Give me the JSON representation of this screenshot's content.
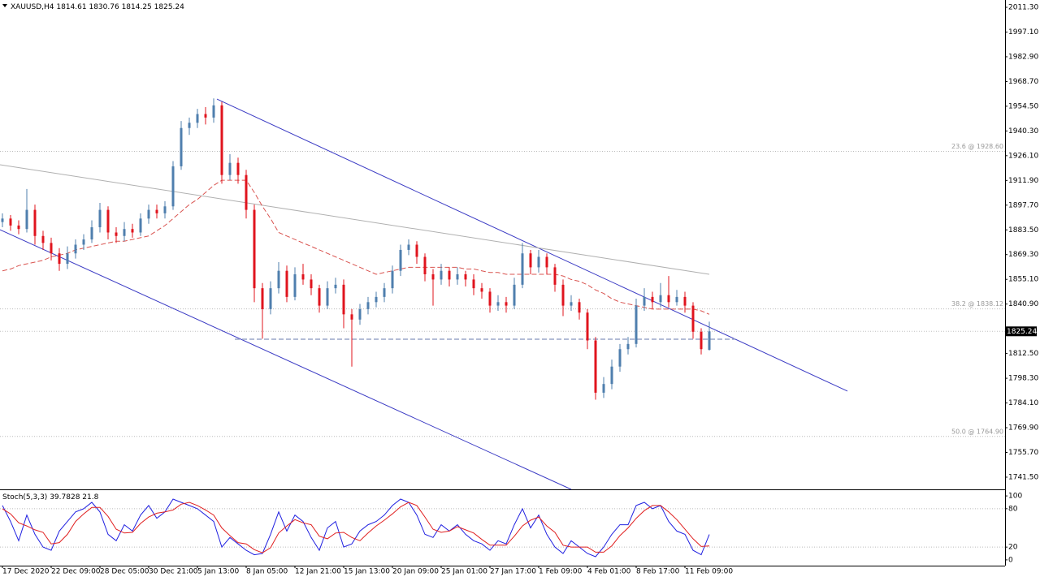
{
  "chart_data": {
    "type": "candlestick",
    "title": "XAUUSD,H4",
    "up_color": "#4f7fae",
    "down_color": "#e0141e",
    "xlim": [
      -0.3,
      123.4
    ],
    "ylim": [
      1734.5,
      2015.5
    ],
    "yticks": [
      {
        "value": 2011.3,
        "label": "2011.30"
      },
      {
        "value": 1997.1,
        "label": "1997.10"
      },
      {
        "value": 1982.9,
        "label": "1982.90"
      },
      {
        "value": 1968.7,
        "label": "1968.70"
      },
      {
        "value": 1954.5,
        "label": "1954.50"
      },
      {
        "value": 1940.3,
        "label": "1940.30"
      },
      {
        "value": 1926.1,
        "label": "1926.10"
      },
      {
        "value": 1911.9,
        "label": "1911.90"
      },
      {
        "value": 1897.7,
        "label": "1897.70"
      },
      {
        "value": 1883.5,
        "label": "1883.50"
      },
      {
        "value": 1869.3,
        "label": "1869.30"
      },
      {
        "value": 1855.1,
        "label": "1855.10"
      },
      {
        "value": 1840.9,
        "label": "1840.90"
      },
      {
        "value": 1812.5,
        "label": "1812.50"
      },
      {
        "value": 1798.3,
        "label": "1798.30"
      },
      {
        "value": 1784.1,
        "label": "1784.10"
      },
      {
        "value": 1769.9,
        "label": "1769.90"
      },
      {
        "value": 1755.7,
        "label": "1755.70"
      },
      {
        "value": 1741.5,
        "label": "1741.50"
      }
    ],
    "xticks": [
      {
        "value": 0,
        "label": "17 Dec 2020"
      },
      {
        "value": 6,
        "label": "22 Dec 09:00"
      },
      {
        "value": 12,
        "label": "28 Dec 05:00"
      },
      {
        "value": 18,
        "label": "30 Dec 21:00"
      },
      {
        "value": 24,
        "label": "5 Jan 13:00"
      },
      {
        "value": 30,
        "label": "8 Jan 05:00"
      },
      {
        "value": 36,
        "label": "12 Jan 21:00"
      },
      {
        "value": 42,
        "label": "15 Jan 13:00"
      },
      {
        "value": 48,
        "label": "20 Jan 09:00"
      },
      {
        "value": 54,
        "label": "25 Jan 01:00"
      },
      {
        "value": 60,
        "label": "27 Jan 17:00"
      },
      {
        "value": 66,
        "label": "1 Feb 09:00"
      },
      {
        "value": 72,
        "label": "4 Feb 01:00"
      },
      {
        "value": 78,
        "label": "8 Feb 17:00"
      },
      {
        "value": 84,
        "label": "11 Feb 09:00"
      }
    ],
    "ohlc": [
      [
        1888,
        1893,
        1885,
        1890
      ],
      [
        1890,
        1892,
        1883,
        1886
      ],
      [
        1886,
        1889,
        1881,
        1884
      ],
      [
        1884,
        1907,
        1882,
        1895
      ],
      [
        1895,
        1898,
        1875,
        1880
      ],
      [
        1880,
        1883,
        1872,
        1876
      ],
      [
        1876,
        1879,
        1866,
        1870
      ],
      [
        1870,
        1873,
        1860,
        1864
      ],
      [
        1864,
        1874,
        1861,
        1870
      ],
      [
        1870,
        1878,
        1867,
        1875
      ],
      [
        1875,
        1881,
        1872,
        1878
      ],
      [
        1878,
        1889,
        1876,
        1885
      ],
      [
        1885,
        1899,
        1882,
        1895
      ],
      [
        1895,
        1897,
        1878,
        1882
      ],
      [
        1882,
        1885,
        1876,
        1880
      ],
      [
        1880,
        1888,
        1877,
        1884
      ],
      [
        1884,
        1887,
        1879,
        1882
      ],
      [
        1882,
        1893,
        1880,
        1890
      ],
      [
        1890,
        1898,
        1887,
        1895
      ],
      [
        1895,
        1898,
        1890,
        1893
      ],
      [
        1893,
        1900,
        1890,
        1897
      ],
      [
        1897,
        1923,
        1895,
        1920
      ],
      [
        1920,
        1946,
        1918,
        1942
      ],
      [
        1942,
        1948,
        1938,
        1945
      ],
      [
        1945,
        1953,
        1942,
        1950
      ],
      [
        1950,
        1954,
        1944,
        1948
      ],
      [
        1948,
        1959,
        1945,
        1955
      ],
      [
        1955,
        1957,
        1910,
        1915
      ],
      [
        1915,
        1927,
        1912,
        1922
      ],
      [
        1922,
        1925,
        1910,
        1915
      ],
      [
        1915,
        1918,
        1890,
        1895
      ],
      [
        1895,
        1898,
        1842,
        1850
      ],
      [
        1850,
        1853,
        1821,
        1838
      ],
      [
        1838,
        1854,
        1835,
        1850
      ],
      [
        1850,
        1865,
        1847,
        1860
      ],
      [
        1860,
        1863,
        1842,
        1845
      ],
      [
        1845,
        1862,
        1843,
        1858
      ],
      [
        1858,
        1864,
        1852,
        1855
      ],
      [
        1855,
        1858,
        1846,
        1850
      ],
      [
        1850,
        1852,
        1836,
        1840
      ],
      [
        1840,
        1854,
        1838,
        1850
      ],
      [
        1850,
        1856,
        1847,
        1852
      ],
      [
        1852,
        1855,
        1827,
        1835
      ],
      [
        1835,
        1838,
        1805,
        1832
      ],
      [
        1832,
        1841,
        1829,
        1838
      ],
      [
        1838,
        1845,
        1835,
        1842
      ],
      [
        1842,
        1848,
        1839,
        1845
      ],
      [
        1845,
        1853,
        1842,
        1850
      ],
      [
        1850,
        1863,
        1847,
        1860
      ],
      [
        1860,
        1875,
        1857,
        1872
      ],
      [
        1872,
        1878,
        1869,
        1875
      ],
      [
        1875,
        1877,
        1864,
        1868
      ],
      [
        1868,
        1870,
        1854,
        1858
      ],
      [
        1858,
        1861,
        1840,
        1855
      ],
      [
        1855,
        1864,
        1852,
        1860
      ],
      [
        1860,
        1862,
        1851,
        1855
      ],
      [
        1855,
        1862,
        1852,
        1858
      ],
      [
        1858,
        1860,
        1851,
        1855
      ],
      [
        1855,
        1858,
        1846,
        1850
      ],
      [
        1850,
        1853,
        1844,
        1848
      ],
      [
        1848,
        1850,
        1836,
        1840
      ],
      [
        1840,
        1846,
        1837,
        1842
      ],
      [
        1842,
        1845,
        1836,
        1840
      ],
      [
        1840,
        1856,
        1838,
        1852
      ],
      [
        1852,
        1876,
        1850,
        1870
      ],
      [
        1870,
        1872,
        1858,
        1862
      ],
      [
        1862,
        1872,
        1859,
        1868
      ],
      [
        1868,
        1870,
        1858,
        1862
      ],
      [
        1862,
        1864,
        1848,
        1852
      ],
      [
        1852,
        1855,
        1834,
        1840
      ],
      [
        1840,
        1846,
        1837,
        1842
      ],
      [
        1842,
        1844,
        1832,
        1836
      ],
      [
        1836,
        1838,
        1815,
        1820
      ],
      [
        1820,
        1822,
        1786,
        1790
      ],
      [
        1790,
        1799,
        1787,
        1795
      ],
      [
        1795,
        1809,
        1792,
        1805
      ],
      [
        1805,
        1818,
        1802,
        1815
      ],
      [
        1815,
        1822,
        1812,
        1818
      ],
      [
        1818,
        1844,
        1816,
        1840
      ],
      [
        1840,
        1850,
        1837,
        1845
      ],
      [
        1845,
        1848,
        1838,
        1842
      ],
      [
        1842,
        1853,
        1839,
        1846
      ],
      [
        1846,
        1857,
        1839,
        1842
      ],
      [
        1842,
        1849,
        1840,
        1845
      ],
      [
        1845,
        1848,
        1836,
        1840
      ],
      [
        1840,
        1842,
        1821,
        1825
      ],
      [
        1825,
        1827,
        1812,
        1815
      ],
      [
        1814.61,
        1830.76,
        1814.25,
        1825.24
      ]
    ],
    "ma": {
      "color": "#d9534f",
      "values": [
        1860,
        1861,
        1863,
        1864,
        1865,
        1866,
        1868,
        1869,
        1870,
        1872,
        1873,
        1874,
        1875,
        1876,
        1877,
        1877,
        1878,
        1879,
        1880,
        1883,
        1886,
        1890,
        1894,
        1898,
        1901,
        1905,
        1909,
        1912,
        1912,
        1912,
        1912,
        1905,
        1897,
        1890,
        1882,
        1880,
        1878,
        1876,
        1874,
        1872,
        1870,
        1868,
        1866,
        1864,
        1862,
        1860,
        1858,
        1859,
        1860,
        1861,
        1862,
        1862,
        1862,
        1862,
        1862,
        1862,
        1862,
        1861,
        1861,
        1860,
        1859,
        1859,
        1858,
        1858,
        1858,
        1858,
        1858,
        1858,
        1858,
        1857,
        1855,
        1854,
        1852,
        1849,
        1847,
        1844,
        1842,
        1841,
        1840,
        1839,
        1838,
        1838,
        1838,
        1838,
        1838,
        1838,
        1837,
        1835
      ]
    },
    "fib_levels": [
      {
        "value": 1928.6,
        "label": "23.6 @ 1928.60"
      },
      {
        "value": 1838.12,
        "label": "38.2 @ 1838.12"
      },
      {
        "value": 1764.9,
        "label": "50.0 @ 1764.90"
      }
    ],
    "trendlines": [
      {
        "color": "#3b3bc4",
        "x": [
          26.4,
          104
        ],
        "y": [
          1958.6,
          1790.9
        ]
      },
      {
        "color": "#3b3bc4",
        "x": [
          -0.3,
          70
        ],
        "y": [
          1883.6,
          1734.5
        ]
      },
      {
        "color": "#b0b0b0",
        "x": [
          -0.3,
          87
        ],
        "y": [
          1920.9,
          1858
        ]
      }
    ],
    "level_line": {
      "color": "#9aa6c8",
      "x": [
        28.6,
        90.2
      ],
      "value": 1820.7
    },
    "stoch": {
      "title": "Stoch(5,3,3)",
      "ylim": [
        -9,
        109
      ],
      "yticks": [
        100,
        80,
        20,
        0
      ],
      "levels": [
        80,
        20
      ],
      "series": [
        {
          "color": "#2020e0",
          "values": [
            85,
            60,
            30,
            70,
            40,
            20,
            15,
            45,
            60,
            75,
            80,
            90,
            75,
            40,
            30,
            55,
            45,
            70,
            85,
            65,
            75,
            95,
            90,
            85,
            80,
            70,
            60,
            20,
            35,
            25,
            15,
            8,
            10,
            40,
            75,
            45,
            70,
            60,
            35,
            15,
            50,
            60,
            20,
            25,
            45,
            55,
            60,
            70,
            85,
            95,
            90,
            70,
            40,
            35,
            55,
            45,
            55,
            40,
            30,
            25,
            15,
            30,
            25,
            55,
            80,
            50,
            70,
            40,
            20,
            10,
            30,
            20,
            10,
            5,
            20,
            40,
            55,
            55,
            85,
            90,
            80,
            85,
            60,
            45,
            40,
            15,
            8,
            39.7828
          ]
        },
        {
          "color": "#e02020",
          "values": [
            80,
            72,
            58,
            53,
            47,
            43,
            25,
            27,
            40,
            60,
            72,
            82,
            82,
            68,
            48,
            42,
            43,
            57,
            67,
            73,
            75,
            78,
            87,
            90,
            85,
            78,
            70,
            50,
            38,
            27,
            25,
            16,
            11,
            19,
            42,
            53,
            63,
            58,
            55,
            37,
            33,
            42,
            43,
            35,
            30,
            42,
            53,
            62,
            72,
            83,
            90,
            85,
            67,
            48,
            43,
            45,
            52,
            47,
            42,
            32,
            23,
            23,
            23,
            37,
            53,
            62,
            67,
            53,
            43,
            23,
            20,
            20,
            20,
            12,
            12,
            22,
            38,
            50,
            65,
            77,
            85,
            85,
            75,
            63,
            48,
            33,
            21,
            21.8
          ]
        }
      ]
    }
  }
}
